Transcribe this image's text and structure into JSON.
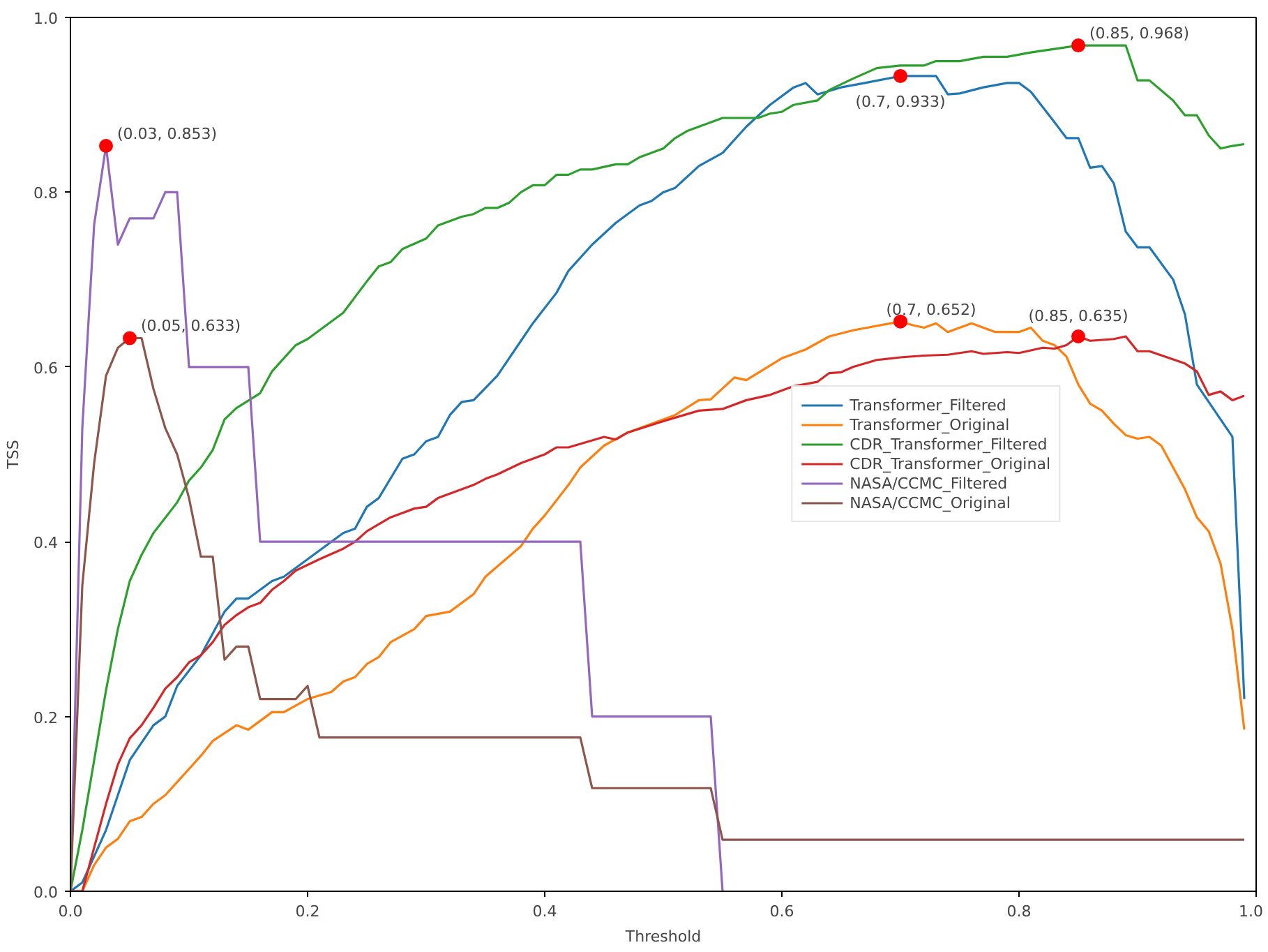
{
  "chart_data": {
    "type": "line",
    "xlabel": "Threshold",
    "ylabel": "TSS",
    "xlim": [
      0,
      1
    ],
    "ylim": [
      0,
      1
    ],
    "xticks": [
      {
        "value": 0,
        "label": "0.0"
      },
      0.2,
      0.4,
      0.6,
      0.8,
      {
        "value": 1,
        "label": "1.0"
      }
    ],
    "yticks": [
      {
        "value": 0,
        "label": "0.0"
      },
      0.2,
      0.4,
      0.6,
      0.8,
      {
        "value": 1,
        "label": "1.0"
      }
    ],
    "grid": false,
    "legend": "center right",
    "marker": "none",
    "line_style": "solid",
    "series": [
      {
        "name": "Transformer_Filtered",
        "color": "#1f77b4",
        "x": [
          0,
          0.01,
          0.03,
          0.05,
          0.07,
          0.08,
          0.09,
          0.11,
          0.13,
          0.14,
          0.15,
          0.17,
          0.18,
          0.2,
          0.23,
          0.24,
          0.25,
          0.26,
          0.28,
          0.29,
          0.3,
          0.31,
          0.32,
          0.33,
          0.34,
          0.36,
          0.38,
          0.39,
          0.41,
          0.42,
          0.44,
          0.46,
          0.48,
          0.49,
          0.5,
          0.51,
          0.53,
          0.55,
          0.57,
          0.59,
          0.61,
          0.62,
          0.63,
          0.65,
          0.67,
          0.7,
          0.73,
          0.74,
          0.75,
          0.77,
          0.79,
          0.8,
          0.81,
          0.83,
          0.84,
          0.85,
          0.86,
          0.87,
          0.88,
          0.89,
          0.9,
          0.91,
          0.93,
          0.94,
          0.95,
          0.96,
          0.98,
          0.99
        ],
        "values": [
          0,
          0.01,
          0.07,
          0.15,
          0.19,
          0.2,
          0.235,
          0.27,
          0.32,
          0.335,
          0.335,
          0.355,
          0.36,
          0.38,
          0.41,
          0.415,
          0.44,
          0.45,
          0.495,
          0.5,
          0.515,
          0.52,
          0.545,
          0.56,
          0.562,
          0.59,
          0.63,
          0.65,
          0.685,
          0.71,
          0.74,
          0.765,
          0.785,
          0.79,
          0.8,
          0.805,
          0.83,
          0.845,
          0.875,
          0.9,
          0.92,
          0.925,
          0.912,
          0.92,
          0.925,
          0.933,
          0.933,
          0.912,
          0.913,
          0.92,
          0.925,
          0.925,
          0.915,
          0.88,
          0.862,
          0.862,
          0.828,
          0.83,
          0.81,
          0.755,
          0.737,
          0.737,
          0.7,
          0.66,
          0.58,
          0.56,
          0.52,
          0.22
        ]
      },
      {
        "name": "Transformer_Original",
        "color": "#ff7f0e",
        "x": [
          0,
          0.01,
          0.02,
          0.03,
          0.04,
          0.05,
          0.06,
          0.07,
          0.08,
          0.1,
          0.11,
          0.12,
          0.14,
          0.15,
          0.17,
          0.18,
          0.2,
          0.22,
          0.23,
          0.24,
          0.25,
          0.26,
          0.27,
          0.29,
          0.3,
          0.32,
          0.34,
          0.35,
          0.38,
          0.39,
          0.4,
          0.42,
          0.43,
          0.45,
          0.47,
          0.49,
          0.51,
          0.53,
          0.54,
          0.56,
          0.57,
          0.6,
          0.62,
          0.64,
          0.66,
          0.7,
          0.71,
          0.72,
          0.73,
          0.74,
          0.76,
          0.78,
          0.8,
          0.81,
          0.82,
          0.83,
          0.84,
          0.85,
          0.86,
          0.87,
          0.88,
          0.89,
          0.9,
          0.91,
          0.92,
          0.94,
          0.95,
          0.96,
          0.97,
          0.98,
          0.99
        ],
        "values": [
          0,
          0,
          0.03,
          0.05,
          0.06,
          0.08,
          0.085,
          0.1,
          0.11,
          0.14,
          0.155,
          0.172,
          0.19,
          0.185,
          0.205,
          0.205,
          0.22,
          0.228,
          0.24,
          0.245,
          0.26,
          0.268,
          0.285,
          0.3,
          0.315,
          0.32,
          0.34,
          0.36,
          0.395,
          0.415,
          0.43,
          0.465,
          0.485,
          0.51,
          0.525,
          0.535,
          0.545,
          0.562,
          0.563,
          0.588,
          0.585,
          0.61,
          0.62,
          0.635,
          0.642,
          0.652,
          0.648,
          0.645,
          0.65,
          0.64,
          0.65,
          0.64,
          0.64,
          0.645,
          0.63,
          0.625,
          0.612,
          0.58,
          0.558,
          0.55,
          0.535,
          0.522,
          0.518,
          0.52,
          0.51,
          0.46,
          0.428,
          0.412,
          0.375,
          0.3,
          0.185
        ]
      },
      {
        "name": "CDR_Transformer_Filtered",
        "color": "#2ca02c",
        "x": [
          0,
          0.01,
          0.03,
          0.04,
          0.05,
          0.06,
          0.07,
          0.09,
          0.1,
          0.11,
          0.12,
          0.13,
          0.14,
          0.16,
          0.17,
          0.19,
          0.2,
          0.22,
          0.23,
          0.25,
          0.26,
          0.27,
          0.28,
          0.3,
          0.31,
          0.33,
          0.34,
          0.35,
          0.36,
          0.37,
          0.38,
          0.39,
          0.4,
          0.41,
          0.42,
          0.43,
          0.44,
          0.46,
          0.47,
          0.48,
          0.5,
          0.51,
          0.52,
          0.53,
          0.54,
          0.55,
          0.58,
          0.59,
          0.6,
          0.61,
          0.63,
          0.64,
          0.66,
          0.68,
          0.7,
          0.72,
          0.73,
          0.75,
          0.77,
          0.79,
          0.81,
          0.83,
          0.85,
          0.89,
          0.9,
          0.91,
          0.93,
          0.94,
          0.95,
          0.96,
          0.97,
          0.98,
          0.99
        ],
        "values": [
          0,
          0.07,
          0.23,
          0.3,
          0.355,
          0.385,
          0.41,
          0.445,
          0.47,
          0.485,
          0.505,
          0.54,
          0.553,
          0.57,
          0.595,
          0.625,
          0.632,
          0.652,
          0.662,
          0.698,
          0.715,
          0.72,
          0.735,
          0.747,
          0.762,
          0.772,
          0.775,
          0.782,
          0.782,
          0.788,
          0.8,
          0.808,
          0.808,
          0.82,
          0.82,
          0.826,
          0.826,
          0.832,
          0.832,
          0.84,
          0.85,
          0.862,
          0.87,
          0.875,
          0.88,
          0.885,
          0.885,
          0.89,
          0.892,
          0.9,
          0.905,
          0.917,
          0.93,
          0.942,
          0.945,
          0.945,
          0.95,
          0.95,
          0.955,
          0.955,
          0.96,
          0.964,
          0.968,
          0.968,
          0.928,
          0.928,
          0.905,
          0.888,
          0.888,
          0.865,
          0.85,
          0.853,
          0.855
        ]
      },
      {
        "name": "CDR_Transformer_Original",
        "color": "#d62728",
        "x": [
          0,
          0.01,
          0.02,
          0.03,
          0.04,
          0.05,
          0.06,
          0.07,
          0.08,
          0.09,
          0.1,
          0.11,
          0.12,
          0.13,
          0.14,
          0.15,
          0.16,
          0.17,
          0.18,
          0.19,
          0.21,
          0.23,
          0.24,
          0.25,
          0.26,
          0.27,
          0.28,
          0.29,
          0.3,
          0.31,
          0.32,
          0.34,
          0.35,
          0.36,
          0.38,
          0.39,
          0.4,
          0.41,
          0.42,
          0.43,
          0.45,
          0.46,
          0.47,
          0.5,
          0.52,
          0.53,
          0.55,
          0.57,
          0.59,
          0.61,
          0.63,
          0.64,
          0.65,
          0.66,
          0.68,
          0.7,
          0.72,
          0.74,
          0.76,
          0.77,
          0.79,
          0.8,
          0.82,
          0.83,
          0.84,
          0.85,
          0.86,
          0.88,
          0.89,
          0.9,
          0.91,
          0.94,
          0.95,
          0.96,
          0.97,
          0.98,
          0.99
        ],
        "values": [
          0,
          0,
          0.05,
          0.1,
          0.145,
          0.175,
          0.19,
          0.21,
          0.232,
          0.245,
          0.262,
          0.27,
          0.285,
          0.305,
          0.316,
          0.325,
          0.33,
          0.345,
          0.355,
          0.367,
          0.38,
          0.392,
          0.4,
          0.412,
          0.42,
          0.428,
          0.433,
          0.438,
          0.44,
          0.45,
          0.455,
          0.465,
          0.472,
          0.477,
          0.49,
          0.495,
          0.5,
          0.508,
          0.508,
          0.512,
          0.52,
          0.517,
          0.525,
          0.538,
          0.546,
          0.55,
          0.552,
          0.562,
          0.568,
          0.578,
          0.583,
          0.593,
          0.594,
          0.6,
          0.608,
          0.611,
          0.613,
          0.614,
          0.618,
          0.615,
          0.617,
          0.616,
          0.622,
          0.621,
          0.625,
          0.635,
          0.63,
          0.632,
          0.635,
          0.618,
          0.618,
          0.604,
          0.595,
          0.568,
          0.572,
          0.562,
          0.567
        ]
      },
      {
        "name": "NASA/CCMC_Filtered",
        "color": "#9467bd",
        "x": [
          0,
          0.01,
          0.02,
          0.03,
          0.04,
          0.05,
          0.07,
          0.08,
          0.09,
          0.1,
          0.15,
          0.16,
          0.43,
          0.44,
          0.54,
          0.55
        ],
        "values": [
          0,
          0.53,
          0.763,
          0.853,
          0.74,
          0.77,
          0.77,
          0.8,
          0.8,
          0.6,
          0.6,
          0.4,
          0.4,
          0.2,
          0.2,
          0
        ]
      },
      {
        "name": "NASA/CCMC_Original",
        "color": "#8c564b",
        "x": [
          0,
          0.01,
          0.02,
          0.03,
          0.04,
          0.05,
          0.06,
          0.07,
          0.08,
          0.09,
          0.1,
          0.11,
          0.12,
          0.13,
          0.14,
          0.15,
          0.16,
          0.19,
          0.2,
          0.21,
          0.43,
          0.44,
          0.54,
          0.55,
          0.99
        ],
        "values": [
          0,
          0.35,
          0.49,
          0.59,
          0.622,
          0.633,
          0.633,
          0.575,
          0.53,
          0.5,
          0.45,
          0.383,
          0.383,
          0.265,
          0.28,
          0.28,
          0.22,
          0.22,
          0.235,
          0.176,
          0.176,
          0.118,
          0.118,
          0.059,
          0.059
        ]
      },
      {
        "type": "scatter",
        "marker": "circle",
        "color": "#ff0000",
        "x": [
          0.03,
          0.05,
          0.7,
          0.7,
          0.85,
          0.85
        ],
        "values": [
          0.853,
          0.633,
          0.933,
          0.652,
          0.968,
          0.635
        ]
      }
    ],
    "annotations": [
      {
        "text": "(0.03, 0.853)",
        "x": 0.03,
        "y": 0.853
      },
      {
        "text": "(0.05, 0.633)",
        "x": 0.05,
        "y": 0.633
      },
      {
        "text": "(0.7, 0.933)",
        "x": 0.7,
        "y": 0.933
      },
      {
        "text": "(0.7, 0.652)",
        "x": 0.7,
        "y": 0.652
      },
      {
        "text": "(0.85, 0.968)",
        "x": 0.85,
        "y": 0.968
      },
      {
        "text": "(0.85, 0.635)",
        "x": 0.85,
        "y": 0.635
      }
    ]
  }
}
